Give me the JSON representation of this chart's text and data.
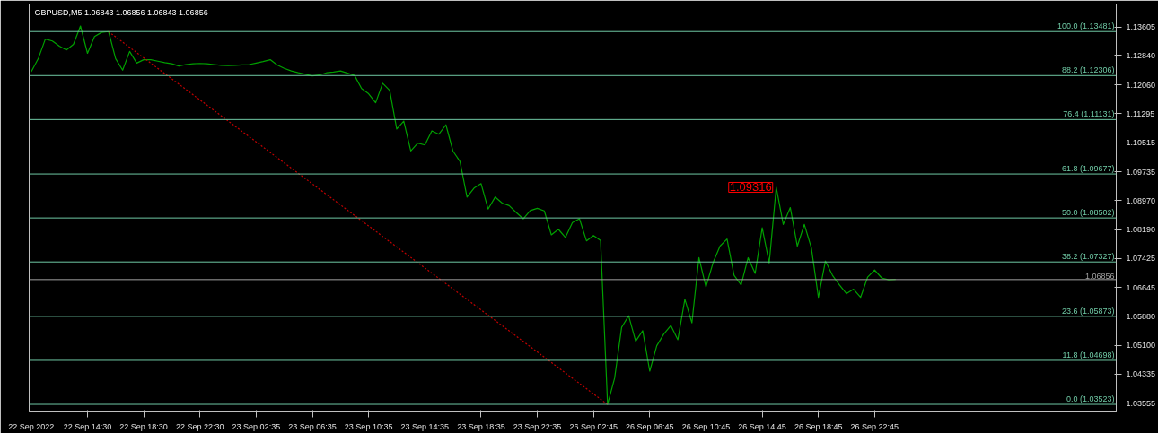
{
  "chart_data": {
    "type": "line",
    "title": "GBPUSD,M5  1.06843 1.06856 1.06843 1.06856",
    "categories": [
      "22 Sep 2022",
      null,
      null,
      null,
      null,
      null,
      null,
      null,
      "22 Sep 14:30",
      null,
      null,
      null,
      null,
      null,
      null,
      null,
      "22 Sep 18:30",
      null,
      null,
      null,
      null,
      null,
      null,
      null,
      "22 Sep 22:30",
      null,
      null,
      null,
      null,
      null,
      null,
      null,
      "23 Sep 02:35",
      null,
      null,
      null,
      null,
      null,
      null,
      null,
      "23 Sep 06:35",
      null,
      null,
      null,
      null,
      null,
      null,
      null,
      "23 Sep 10:35",
      null,
      null,
      null,
      null,
      null,
      null,
      null,
      "23 Sep 14:35",
      null,
      null,
      null,
      null,
      null,
      null,
      null,
      "23 Sep 18:35",
      null,
      null,
      null,
      null,
      null,
      null,
      null,
      "23 Sep 22:35",
      null,
      null,
      null,
      null,
      null,
      null,
      null,
      "26 Sep 02:45",
      null,
      null,
      null,
      null,
      null,
      null,
      null,
      "26 Sep 06:45",
      null,
      null,
      null,
      null,
      null,
      null,
      null,
      "26 Sep 10:45",
      null,
      null,
      null,
      null,
      null,
      null,
      null,
      "26 Sep 14:45",
      null,
      null,
      null,
      null,
      null,
      null,
      null,
      "26 Sep 18:45",
      null,
      null,
      null,
      null,
      null,
      null,
      null,
      "26 Sep 22:45",
      null,
      null,
      null
    ],
    "ylim": [
      1.0332,
      1.14217
    ],
    "yticks": [
      {
        "value": 1.13605,
        "label": "1.13605"
      },
      {
        "value": 1.1284,
        "label": "1.12840"
      },
      {
        "value": 1.1206,
        "label": "1.12060"
      },
      {
        "value": 1.11295,
        "label": "1.11295"
      },
      {
        "value": 1.10515,
        "label": "1.10515"
      },
      {
        "value": 1.09735,
        "label": "1.09735"
      },
      {
        "value": 1.0897,
        "label": "1.08970"
      },
      {
        "value": 1.0819,
        "label": "1.08190"
      },
      {
        "value": 1.07425,
        "label": "1.07425"
      },
      {
        "value": 1.06645,
        "label": "1.06645"
      },
      {
        "value": 1.0588,
        "label": "1.05880"
      },
      {
        "value": 1.051,
        "label": "1.05100"
      },
      {
        "value": 1.04335,
        "label": "1.04335"
      },
      {
        "value": 1.03555,
        "label": "1.03555"
      }
    ],
    "grid": false,
    "series": [
      {
        "color": "#00a000",
        "line_style": "solid",
        "values": [
          1.1241,
          1.1276,
          1.1328,
          1.1323,
          1.1309,
          1.1299,
          1.1314,
          1.1363,
          1.129,
          1.1335,
          1.1346,
          1.1348,
          1.1276,
          1.1245,
          1.1295,
          1.1264,
          1.1273,
          1.1273,
          1.1269,
          1.1265,
          1.1262,
          1.1256,
          1.126,
          1.1262,
          1.1263,
          1.1262,
          1.126,
          1.1258,
          1.1257,
          1.1258,
          1.1259,
          1.126,
          1.1264,
          1.1268,
          1.1273,
          1.1259,
          1.125,
          1.1243,
          1.1238,
          1.1234,
          1.123,
          1.1232,
          1.1238,
          1.124,
          1.1243,
          1.1237,
          1.1231,
          1.1196,
          1.1182,
          1.1158,
          1.121,
          1.1191,
          1.1088,
          1.1109,
          1.1029,
          1.105,
          1.1045,
          1.1083,
          1.1074,
          1.1099,
          1.1029,
          1.1001,
          1.0906,
          1.093,
          1.0942,
          1.0874,
          1.0906,
          1.089,
          1.0883,
          1.0865,
          1.0848,
          1.087,
          1.0876,
          1.0869,
          1.0805,
          1.082,
          1.0798,
          1.0838,
          1.0848,
          1.0789,
          1.0803,
          1.079,
          1.0352,
          1.0422,
          1.0558,
          1.0589,
          1.0521,
          1.0549,
          1.0441,
          1.0509,
          1.054,
          1.0563,
          1.0525,
          1.0633,
          1.057,
          1.0744,
          1.0666,
          1.073,
          1.0775,
          1.0794,
          1.0697,
          1.0671,
          1.0744,
          1.0702,
          1.0824,
          1.073,
          1.0932,
          1.0833,
          1.0878,
          1.0775,
          1.0833,
          1.077,
          1.0638,
          1.0735,
          1.0697,
          1.0671,
          1.0648,
          1.066,
          1.0638,
          1.0692,
          1.0711,
          1.069,
          1.0685,
          1.0686
        ]
      },
      {
        "color": "#c00000",
        "line_style": "dotted",
        "values": [
          null,
          null,
          null,
          null,
          null,
          null,
          null,
          null,
          null,
          null,
          null,
          1.1348,
          null,
          null,
          null,
          null,
          null,
          null,
          null,
          null,
          null,
          null,
          null,
          null,
          null,
          null,
          null,
          null,
          null,
          null,
          null,
          null,
          null,
          null,
          null,
          null,
          null,
          null,
          null,
          null,
          null,
          null,
          null,
          null,
          null,
          null,
          null,
          null,
          null,
          null,
          null,
          null,
          null,
          null,
          null,
          null,
          null,
          null,
          null,
          null,
          null,
          null,
          null,
          null,
          null,
          null,
          null,
          null,
          null,
          null,
          null,
          null,
          null,
          null,
          null,
          null,
          null,
          null,
          null,
          null,
          null,
          null,
          1.0352,
          null,
          null,
          null,
          null,
          null,
          null,
          null,
          null,
          null,
          null,
          null,
          null,
          null,
          null,
          null,
          null,
          null,
          null,
          null,
          null,
          null,
          null,
          null,
          null,
          null,
          null,
          null,
          null,
          null,
          null,
          null,
          null,
          null,
          null,
          null,
          null,
          null,
          null,
          null,
          null,
          null
        ]
      }
    ],
    "ref_lines": [
      {
        "axis": "y",
        "value": 1.13481,
        "label": "100.0 (1.13481)",
        "color": "#6fc8a4"
      },
      {
        "axis": "y",
        "value": 1.12306,
        "label": "88.2 (1.12306)",
        "color": "#6fc8a4"
      },
      {
        "axis": "y",
        "value": 1.11131,
        "label": "76.4 (1.11131)",
        "color": "#6fc8a4"
      },
      {
        "axis": "y",
        "value": 1.09677,
        "label": "61.8 (1.09677)",
        "color": "#6fc8a4"
      },
      {
        "axis": "y",
        "value": 1.08502,
        "label": "50.0 (1.08502)",
        "color": "#6fc8a4"
      },
      {
        "axis": "y",
        "value": 1.07327,
        "label": "38.2 (1.07327)",
        "color": "#6fc8a4"
      },
      {
        "axis": "y",
        "value": 1.05873,
        "label": "23.6 (1.05873)",
        "color": "#6fc8a4"
      },
      {
        "axis": "y",
        "value": 1.04698,
        "label": "11.8 (1.04698)",
        "color": "#6fc8a4"
      },
      {
        "axis": "y",
        "value": 1.03523,
        "label": "0.0 (1.03523)",
        "color": "#6fc8a4"
      },
      {
        "axis": "y",
        "value": 1.06856,
        "label": "1.06856",
        "color": "#a0a0a0"
      }
    ],
    "annotations": [
      "1.09316"
    ]
  }
}
